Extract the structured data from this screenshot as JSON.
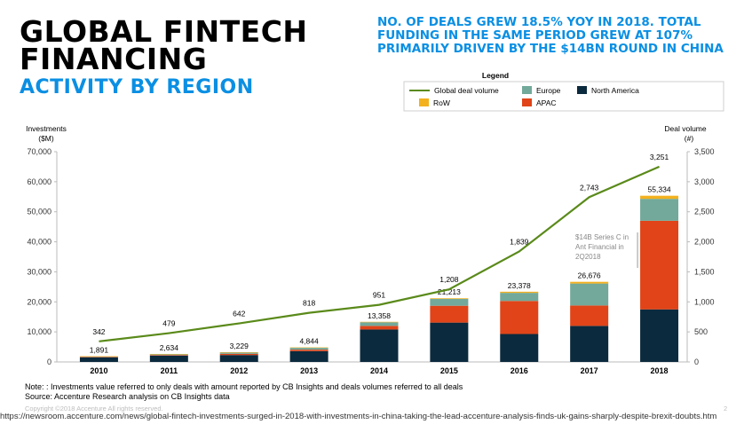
{
  "header": {
    "title_line1": "GLOBAL FINTECH",
    "title_line2": "FINANCING",
    "subtitle": "ACTIVITY BY REGION",
    "headline": "NO. OF DEALS GREW 18.5% YOY IN 2018. TOTAL FUNDING IN THE SAME PERIOD GREW AT 107% PRIMARILY DRIVEN BY THE $14BN ROUND IN CHINA"
  },
  "footer": {
    "note": "Note: : Investments value referred to only deals with amount reported by CB Insights and deals volumes referred to all deals",
    "source": "Source: Accenture Research analysis on CB Insights data",
    "copyright": "Copyright ©2018 Accenture All rights reserved.",
    "page": "2",
    "url": "https://newsroom.accenture.com/news/global-fintech-investments-surged-in-2018-with-investments-in-china-taking-the-lead-accenture-analysis-finds-uk-gains-sharply-despite-brexit-doubts.htm"
  },
  "colors": {
    "north_america": "#0b2a3d",
    "apac": "#e04418",
    "europe": "#72a99a",
    "row": "#f3b11e",
    "deal_line": "#5a8a1a",
    "axis_text": "#333333",
    "accent": "#0a8fe3"
  },
  "chart_data": {
    "type": "bar",
    "stacked": true,
    "categories": [
      "2010",
      "2011",
      "2012",
      "2013",
      "2014",
      "2015",
      "2016",
      "2017",
      "2018"
    ],
    "y_left_label": "Investments ($M)",
    "y_left_ticks": [
      "0",
      "10,000",
      "20,000",
      "30,000",
      "40,000",
      "50,000",
      "60,000",
      "70,000"
    ],
    "ylim_left": [
      0,
      70000
    ],
    "y_right_label": "Deal volume (#)",
    "y_right_ticks": [
      "0",
      "500",
      "1,000",
      "1,500",
      "2,000",
      "2,500",
      "3,000",
      "3,500"
    ],
    "ylim_right": [
      0,
      3500
    ],
    "legend_title": "Legend",
    "series": [
      {
        "name": "North America",
        "key": "north_america",
        "values": [
          1500,
          2100,
          2300,
          3600,
          10800,
          13100,
          9300,
          12000,
          17500
        ]
      },
      {
        "name": "APAC",
        "key": "apac",
        "values": [
          150,
          200,
          400,
          500,
          1200,
          5600,
          11000,
          6800,
          29500
        ]
      },
      {
        "name": "Europe",
        "key": "europe",
        "values": [
          200,
          300,
          450,
          600,
          1200,
          2300,
          2700,
          7300,
          7300
        ]
      },
      {
        "name": "RoW",
        "key": "row",
        "values": [
          41,
          34,
          79,
          144,
          158,
          213,
          378,
          576,
          1034
        ]
      }
    ],
    "totals": [
      "1,891",
      "2,634",
      "3,229",
      "4,844",
      "13,358",
      "21,213",
      "23,378",
      "26,676",
      "55,334"
    ],
    "totals_values": [
      1891,
      2634,
      3229,
      4844,
      13358,
      21213,
      23378,
      26676,
      55334
    ],
    "line": {
      "name": "Global deal volume",
      "values": [
        342,
        479,
        642,
        818,
        951,
        1208,
        1839,
        2743,
        3251
      ],
      "labels": [
        "342",
        "479",
        "642",
        "818",
        "951",
        "1,208",
        "1,839",
        "2,743",
        "3,251"
      ]
    },
    "annotation": {
      "lines": [
        "$14B Series C in",
        "Ant Financial in",
        "2Q2018"
      ]
    }
  }
}
